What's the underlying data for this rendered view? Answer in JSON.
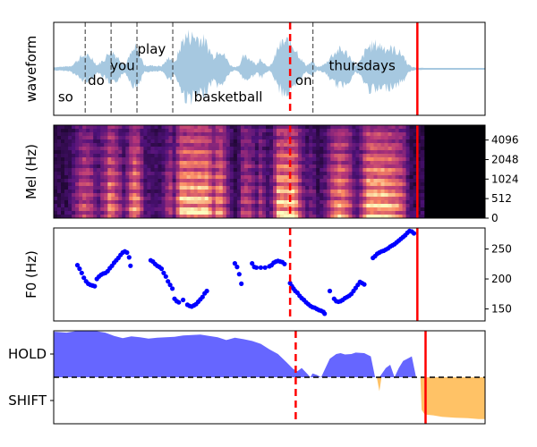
{
  "chart_data": [
    {
      "type": "area",
      "panel": "waveform",
      "ylabel": "waveform",
      "grid": false,
      "x_range": [
        0,
        1
      ],
      "y_range": [
        -1,
        1
      ],
      "words": [
        {
          "text": "so",
          "x": 0.01,
          "y": -0.64
        },
        {
          "text": "do",
          "x": 0.079,
          "y": -0.27
        },
        {
          "text": "you",
          "x": 0.131,
          "y": 0.07
        },
        {
          "text": "play",
          "x": 0.194,
          "y": 0.45
        },
        {
          "text": "basketball",
          "x": 0.325,
          "y": -0.64
        },
        {
          "text": "on",
          "x": 0.56,
          "y": -0.27
        },
        {
          "text": "thursdays",
          "x": 0.638,
          "y": 0.07
        }
      ],
      "word_boundaries": [
        0.073,
        0.133,
        0.193,
        0.276,
        0.601
      ],
      "envelope": [
        [
          0.0,
          0.05
        ],
        [
          0.02,
          0.06
        ],
        [
          0.04,
          0.08
        ],
        [
          0.06,
          0.3
        ],
        [
          0.07,
          0.4
        ],
        [
          0.08,
          0.35
        ],
        [
          0.09,
          0.3
        ],
        [
          0.1,
          0.1
        ],
        [
          0.12,
          0.3
        ],
        [
          0.13,
          0.55
        ],
        [
          0.14,
          0.45
        ],
        [
          0.155,
          0.25
        ],
        [
          0.165,
          0.1
        ],
        [
          0.18,
          0.45
        ],
        [
          0.19,
          0.6
        ],
        [
          0.2,
          0.4
        ],
        [
          0.21,
          0.1
        ],
        [
          0.25,
          0.08
        ],
        [
          0.27,
          0.35
        ],
        [
          0.28,
          0.15
        ],
        [
          0.3,
          0.85
        ],
        [
          0.31,
          0.95
        ],
        [
          0.33,
          0.92
        ],
        [
          0.35,
          0.8
        ],
        [
          0.37,
          0.35
        ],
        [
          0.385,
          0.6
        ],
        [
          0.4,
          0.3
        ],
        [
          0.41,
          0.1
        ],
        [
          0.42,
          0.05
        ],
        [
          0.43,
          0.1
        ],
        [
          0.44,
          0.35
        ],
        [
          0.455,
          0.3
        ],
        [
          0.465,
          0.2
        ],
        [
          0.47,
          0.1
        ],
        [
          0.48,
          0.3
        ],
        [
          0.49,
          0.15
        ],
        [
          0.5,
          0.05
        ],
        [
          0.51,
          0.25
        ],
        [
          0.52,
          0.6
        ],
        [
          0.53,
          0.75
        ],
        [
          0.545,
          0.8
        ],
        [
          0.56,
          0.6
        ],
        [
          0.575,
          0.25
        ],
        [
          0.585,
          0.1
        ],
        [
          0.6,
          0.2
        ],
        [
          0.61,
          0.05
        ],
        [
          0.62,
          0.08
        ],
        [
          0.63,
          0.15
        ],
        [
          0.645,
          0.4
        ],
        [
          0.66,
          0.55
        ],
        [
          0.675,
          0.5
        ],
        [
          0.69,
          0.3
        ],
        [
          0.7,
          0.1
        ],
        [
          0.71,
          0.2
        ],
        [
          0.72,
          0.45
        ],
        [
          0.73,
          0.65
        ],
        [
          0.75,
          0.7
        ],
        [
          0.77,
          0.6
        ],
        [
          0.79,
          0.55
        ],
        [
          0.81,
          0.4
        ],
        [
          0.82,
          0.15
        ],
        [
          0.83,
          0.05
        ],
        [
          0.86,
          0.02
        ],
        [
          0.9,
          0.01
        ],
        [
          1.0,
          0.01
        ]
      ],
      "markers": [
        {
          "x": 0.548,
          "style": "dashed",
          "color": "#ff0000"
        },
        {
          "x": 0.843,
          "style": "solid",
          "color": "#ff0000"
        }
      ],
      "color": "#a6c8e0"
    },
    {
      "type": "heatmap",
      "panel": "mel-spectrogram",
      "ylabel": "Mel (Hz)",
      "yticks": [
        "0",
        "512",
        "1024",
        "2048",
        "4096"
      ],
      "colormap": "magma",
      "markers": [
        {
          "x": 0.548,
          "style": "dashed",
          "color": "#ff0000"
        },
        {
          "x": 0.843,
          "style": "solid",
          "color": "#ff0000"
        }
      ]
    },
    {
      "type": "scatter",
      "panel": "f0",
      "ylabel": "F0 (Hz)",
      "ylim": [
        130,
        285
      ],
      "yticks": [
        150,
        200,
        250
      ],
      "color": "#0000ff",
      "points": [
        [
          0.055,
          223
        ],
        [
          0.06,
          217
        ],
        [
          0.065,
          210
        ],
        [
          0.07,
          202
        ],
        [
          0.075,
          196
        ],
        [
          0.08,
          192
        ],
        [
          0.085,
          190
        ],
        [
          0.09,
          189
        ],
        [
          0.095,
          188
        ],
        [
          0.1,
          200
        ],
        [
          0.105,
          204
        ],
        [
          0.11,
          207
        ],
        [
          0.115,
          209
        ],
        [
          0.12,
          210
        ],
        [
          0.125,
          213
        ],
        [
          0.13,
          218
        ],
        [
          0.135,
          222
        ],
        [
          0.14,
          227
        ],
        [
          0.145,
          231
        ],
        [
          0.15,
          235
        ],
        [
          0.155,
          240
        ],
        [
          0.16,
          244
        ],
        [
          0.165,
          246
        ],
        [
          0.17,
          244
        ],
        [
          0.175,
          236
        ],
        [
          0.178,
          222
        ],
        [
          0.225,
          231
        ],
        [
          0.23,
          229
        ],
        [
          0.235,
          225
        ],
        [
          0.24,
          222
        ],
        [
          0.245,
          220
        ],
        [
          0.25,
          217
        ],
        [
          0.255,
          210
        ],
        [
          0.26,
          204
        ],
        [
          0.265,
          196
        ],
        [
          0.27,
          190
        ],
        [
          0.275,
          184
        ],
        [
          0.28,
          167
        ],
        [
          0.285,
          163
        ],
        [
          0.29,
          161
        ],
        [
          0.3,
          165
        ],
        [
          0.31,
          157
        ],
        [
          0.315,
          155
        ],
        [
          0.32,
          154
        ],
        [
          0.325,
          156
        ],
        [
          0.33,
          158
        ],
        [
          0.335,
          162
        ],
        [
          0.34,
          166
        ],
        [
          0.345,
          170
        ],
        [
          0.35,
          176
        ],
        [
          0.355,
          180
        ],
        [
          0.42,
          226
        ],
        [
          0.425,
          220
        ],
        [
          0.43,
          208
        ],
        [
          0.435,
          192
        ],
        [
          0.46,
          226
        ],
        [
          0.465,
          220
        ],
        [
          0.47,
          219
        ],
        [
          0.48,
          219
        ],
        [
          0.49,
          219
        ],
        [
          0.5,
          221
        ],
        [
          0.505,
          223
        ],
        [
          0.51,
          227
        ],
        [
          0.515,
          229
        ],
        [
          0.52,
          230
        ],
        [
          0.525,
          229
        ],
        [
          0.53,
          228
        ],
        [
          0.535,
          225
        ],
        [
          0.548,
          193
        ],
        [
          0.552,
          188
        ],
        [
          0.556,
          184
        ],
        [
          0.56,
          180
        ],
        [
          0.565,
          177
        ],
        [
          0.57,
          172
        ],
        [
          0.575,
          168
        ],
        [
          0.58,
          165
        ],
        [
          0.585,
          161
        ],
        [
          0.59,
          158
        ],
        [
          0.595,
          155
        ],
        [
          0.6,
          153
        ],
        [
          0.605,
          152
        ],
        [
          0.61,
          150
        ],
        [
          0.615,
          148
        ],
        [
          0.62,
          147
        ],
        [
          0.625,
          145
        ],
        [
          0.628,
          142
        ],
        [
          0.64,
          180
        ],
        [
          0.65,
          167
        ],
        [
          0.655,
          163
        ],
        [
          0.66,
          162
        ],
        [
          0.665,
          163
        ],
        [
          0.67,
          165
        ],
        [
          0.675,
          168
        ],
        [
          0.68,
          170
        ],
        [
          0.685,
          172
        ],
        [
          0.69,
          175
        ],
        [
          0.695,
          180
        ],
        [
          0.7,
          185
        ],
        [
          0.705,
          190
        ],
        [
          0.71,
          195
        ],
        [
          0.715,
          193
        ],
        [
          0.72,
          191
        ],
        [
          0.74,
          235
        ],
        [
          0.745,
          238
        ],
        [
          0.75,
          242
        ],
        [
          0.755,
          244
        ],
        [
          0.76,
          246
        ],
        [
          0.765,
          247
        ],
        [
          0.77,
          249
        ],
        [
          0.775,
          251
        ],
        [
          0.78,
          254
        ],
        [
          0.785,
          256
        ],
        [
          0.79,
          258
        ],
        [
          0.795,
          261
        ],
        [
          0.8,
          264
        ],
        [
          0.805,
          267
        ],
        [
          0.81,
          270
        ],
        [
          0.815,
          273
        ],
        [
          0.82,
          277
        ],
        [
          0.825,
          280
        ],
        [
          0.83,
          279
        ],
        [
          0.835,
          276
        ]
      ],
      "markers": [
        {
          "x": 0.548,
          "style": "dashed",
          "color": "#ff0000"
        },
        {
          "x": 0.843,
          "style": "solid",
          "color": "#ff0000"
        }
      ]
    },
    {
      "type": "area",
      "panel": "turn-taking",
      "yticks": [
        "HOLD",
        "SHIFT"
      ],
      "ylim": [
        -1,
        1
      ],
      "baseline": 0,
      "hold_color": "#6666ff",
      "shift_color": "#ffc266",
      "hold_series": [
        [
          0.0,
          0.98
        ],
        [
          0.03,
          0.96
        ],
        [
          0.05,
          0.99
        ],
        [
          0.08,
          1.0
        ],
        [
          0.1,
          0.99
        ],
        [
          0.12,
          0.96
        ],
        [
          0.14,
          0.89
        ],
        [
          0.16,
          0.84
        ],
        [
          0.18,
          0.88
        ],
        [
          0.2,
          0.86
        ],
        [
          0.22,
          0.83
        ],
        [
          0.24,
          0.85
        ],
        [
          0.26,
          0.86
        ],
        [
          0.28,
          0.87
        ],
        [
          0.3,
          0.9
        ],
        [
          0.32,
          0.91
        ],
        [
          0.34,
          0.92
        ],
        [
          0.36,
          0.89
        ],
        [
          0.38,
          0.86
        ],
        [
          0.4,
          0.8
        ],
        [
          0.42,
          0.85
        ],
        [
          0.44,
          0.82
        ],
        [
          0.46,
          0.78
        ],
        [
          0.48,
          0.72
        ],
        [
          0.5,
          0.6
        ],
        [
          0.52,
          0.5
        ],
        [
          0.54,
          0.32
        ],
        [
          0.555,
          0.18
        ],
        [
          0.565,
          0.13
        ],
        [
          0.575,
          0.2
        ],
        [
          0.585,
          0.1
        ],
        [
          0.595,
          0.0
        ],
        [
          0.6,
          0.08
        ],
        [
          0.61,
          0.05
        ],
        [
          0.62,
          0.0
        ],
        [
          0.64,
          0.4
        ],
        [
          0.655,
          0.5
        ],
        [
          0.665,
          0.52
        ],
        [
          0.675,
          0.49
        ],
        [
          0.69,
          0.5
        ],
        [
          0.7,
          0.53
        ],
        [
          0.72,
          0.52
        ],
        [
          0.735,
          0.45
        ],
        [
          0.745,
          0.0
        ],
        [
          0.755,
          0.0
        ],
        [
          0.77,
          0.2
        ],
        [
          0.78,
          0.27
        ],
        [
          0.79,
          0.0
        ],
        [
          0.8,
          0.2
        ],
        [
          0.81,
          0.35
        ],
        [
          0.82,
          0.4
        ],
        [
          0.83,
          0.45
        ],
        [
          0.84,
          0.0
        ],
        [
          1.0,
          0.0
        ]
      ],
      "shift_series": [
        [
          0.0,
          0.0
        ],
        [
          0.749,
          0.0
        ],
        [
          0.755,
          -0.3
        ],
        [
          0.76,
          0.0
        ],
        [
          0.85,
          0.0
        ],
        [
          0.853,
          -0.7
        ],
        [
          0.86,
          -0.8
        ],
        [
          0.88,
          -0.82
        ],
        [
          0.9,
          -0.85
        ],
        [
          0.93,
          -0.87
        ],
        [
          0.96,
          -0.88
        ],
        [
          0.985,
          -0.9
        ],
        [
          1.0,
          -0.9
        ]
      ],
      "markers": [
        {
          "x": 0.561,
          "style": "dashed",
          "color": "#ff0000"
        },
        {
          "x": 0.862,
          "style": "solid",
          "color": "#ff0000"
        }
      ]
    }
  ]
}
